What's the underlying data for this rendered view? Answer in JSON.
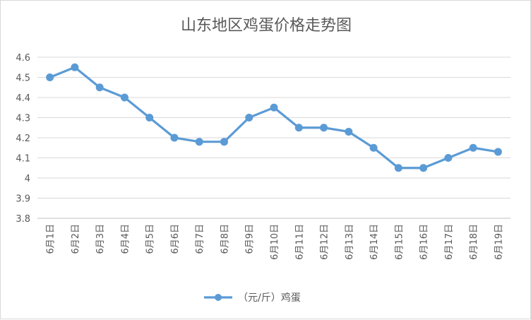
{
  "chart_data": {
    "type": "line",
    "title": "山东地区鸡蛋价格走势图",
    "categories": [
      "6月1日",
      "6月2日",
      "6月3日",
      "6月4日",
      "6月5日",
      "6月6日",
      "6月7日",
      "6月8日",
      "6月9日",
      "6月10日",
      "6月11日",
      "6月12日",
      "6月13日",
      "6月14日",
      "6月15日",
      "6月16日",
      "6月17日",
      "6月18日",
      "6月19日"
    ],
    "series": [
      {
        "name": "（元/斤）鸡蛋",
        "values": [
          4.5,
          4.55,
          4.45,
          4.4,
          4.3,
          4.2,
          4.18,
          4.18,
          4.3,
          4.35,
          4.25,
          4.25,
          4.23,
          4.15,
          4.05,
          4.05,
          4.1,
          4.15,
          4.13
        ]
      }
    ],
    "ylim": [
      3.8,
      4.6
    ],
    "yticks": [
      "3.8",
      "3.9",
      "4",
      "4.1",
      "4.2",
      "4.3",
      "4.4",
      "4.5",
      "4.6"
    ],
    "grid": true,
    "legend_position": "bottom",
    "colors": {
      "series": "#5b9bd5",
      "grid": "#d9d9d9",
      "text": "#595959"
    }
  }
}
